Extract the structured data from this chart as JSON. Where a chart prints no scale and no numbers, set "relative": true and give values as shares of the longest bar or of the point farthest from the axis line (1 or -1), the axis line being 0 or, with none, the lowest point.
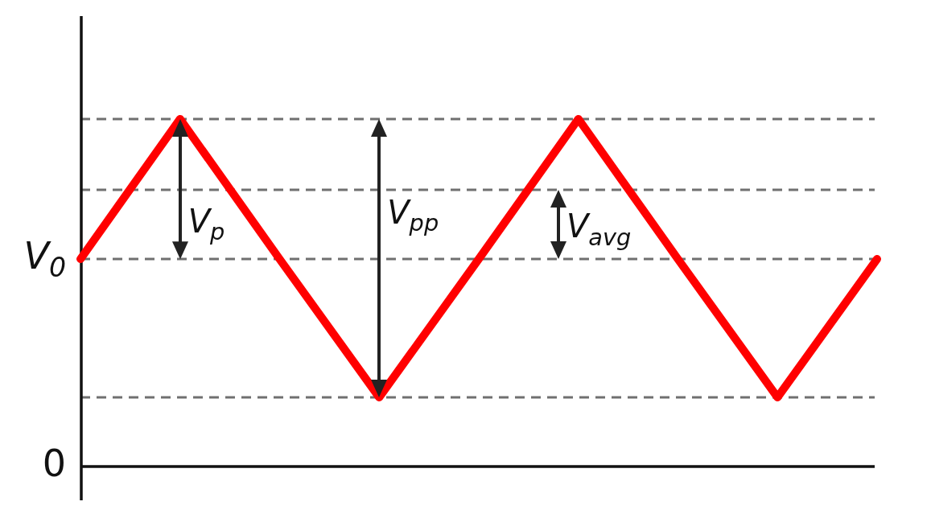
{
  "chart_data": {
    "type": "line",
    "relative": true,
    "categories": [
      null,
      null,
      null,
      null,
      null,
      null,
      null,
      null,
      null
    ],
    "values": [
      0.597,
      1,
      0.597,
      0.199,
      0.597,
      1,
      0.597,
      0.199,
      0.597
    ],
    "color": "#ff0000",
    "ref_lines": [
      {
        "axis": "y",
        "value": 1,
        "label": null,
        "color": "#707070",
        "line_style": "dashed"
      },
      {
        "axis": "y",
        "value": 0.796,
        "label": null,
        "color": "#707070",
        "line_style": "dashed"
      },
      {
        "axis": "y",
        "value": 0.597,
        "label": "V$_{0}$",
        "color": "#707070",
        "line_style": "dashed"
      },
      {
        "axis": "y",
        "value": 0.199,
        "label": null,
        "color": "#707070",
        "line_style": "dashed"
      },
      {
        "axis": "y",
        "value": 0,
        "label": "0",
        "color": "#111111",
        "line_style": "solid"
      }
    ],
    "annotations": [
      "V$_{p}$",
      "V$_{pp}$",
      "V$_{avg}$"
    ]
  }
}
